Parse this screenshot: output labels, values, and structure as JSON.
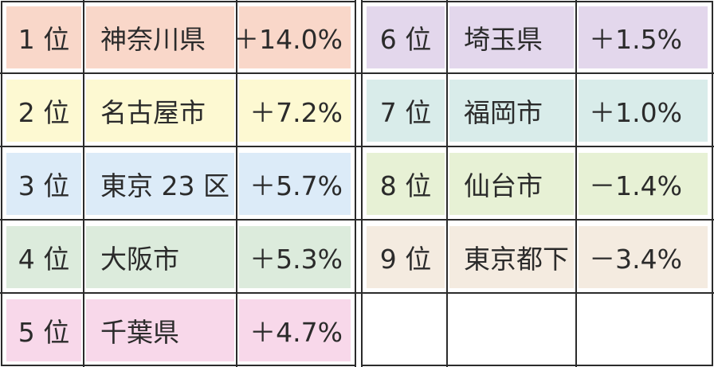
{
  "left_rows": [
    {
      "rank": "1 位",
      "name": "神奈川県",
      "change": "＋14.0%",
      "color": "#f9d7c9"
    },
    {
      "rank": "2 位",
      "name": "名古屋市",
      "change": "＋7.2%",
      "color": "#fdf9d2"
    },
    {
      "rank": "3 位",
      "name": "東京 23 区",
      "change": "＋5.7%",
      "color": "#dcebf8"
    },
    {
      "rank": "4 位",
      "name": "大阪市",
      "change": "＋5.3%",
      "color": "#dcebdc"
    },
    {
      "rank": "5 位",
      "name": "千葉県",
      "change": "＋4.7%",
      "color": "#f8d8ea"
    }
  ],
  "right_rows": [
    {
      "rank": "6 位",
      "name": "埼玉県",
      "change": "＋1.5%",
      "color": "#e3d7ec"
    },
    {
      "rank": "7 位",
      "name": "福岡市",
      "change": "＋1.0%",
      "color": "#d9ecea"
    },
    {
      "rank": "8 位",
      "name": "仙台市",
      "change": "－1.4%",
      "color": "#e7f1d5"
    },
    {
      "rank": "9 位",
      "name": "東京都下",
      "change": "－3.4%",
      "color": "#f4ebe0"
    },
    {
      "rank": "",
      "name": "",
      "change": "",
      "color": "#ffffff"
    }
  ]
}
